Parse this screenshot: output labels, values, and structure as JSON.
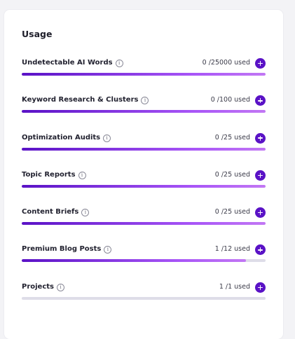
{
  "usage": {
    "title": "Usage",
    "info_glyph": "i",
    "unit_label": "used",
    "items": [
      {
        "label": "Undetectable AI Words",
        "used": "0",
        "limit": "/25000",
        "fill": 1.0
      },
      {
        "label": "Keyword Research & Clusters",
        "used": "0",
        "limit": "/100",
        "fill": 1.0
      },
      {
        "label": "Optimization Audits",
        "used": "0",
        "limit": "/25",
        "fill": 1.0
      },
      {
        "label": "Topic Reports",
        "used": "0",
        "limit": "/25",
        "fill": 1.0
      },
      {
        "label": "Content Briefs",
        "used": "0",
        "limit": "/25",
        "fill": 1.0
      },
      {
        "label": "Premium Blog Posts",
        "used": "1",
        "limit": "/12",
        "fill": 0.92
      },
      {
        "label": "Projects",
        "used": "1",
        "limit": "/1",
        "fill": 0.0
      }
    ]
  },
  "colors": {
    "accent": "#5a12c6",
    "gradient_end": "#c277f4",
    "track": "#dedde8"
  },
  "icons": {
    "info": "info-circle-icon",
    "add": "plus-icon"
  }
}
